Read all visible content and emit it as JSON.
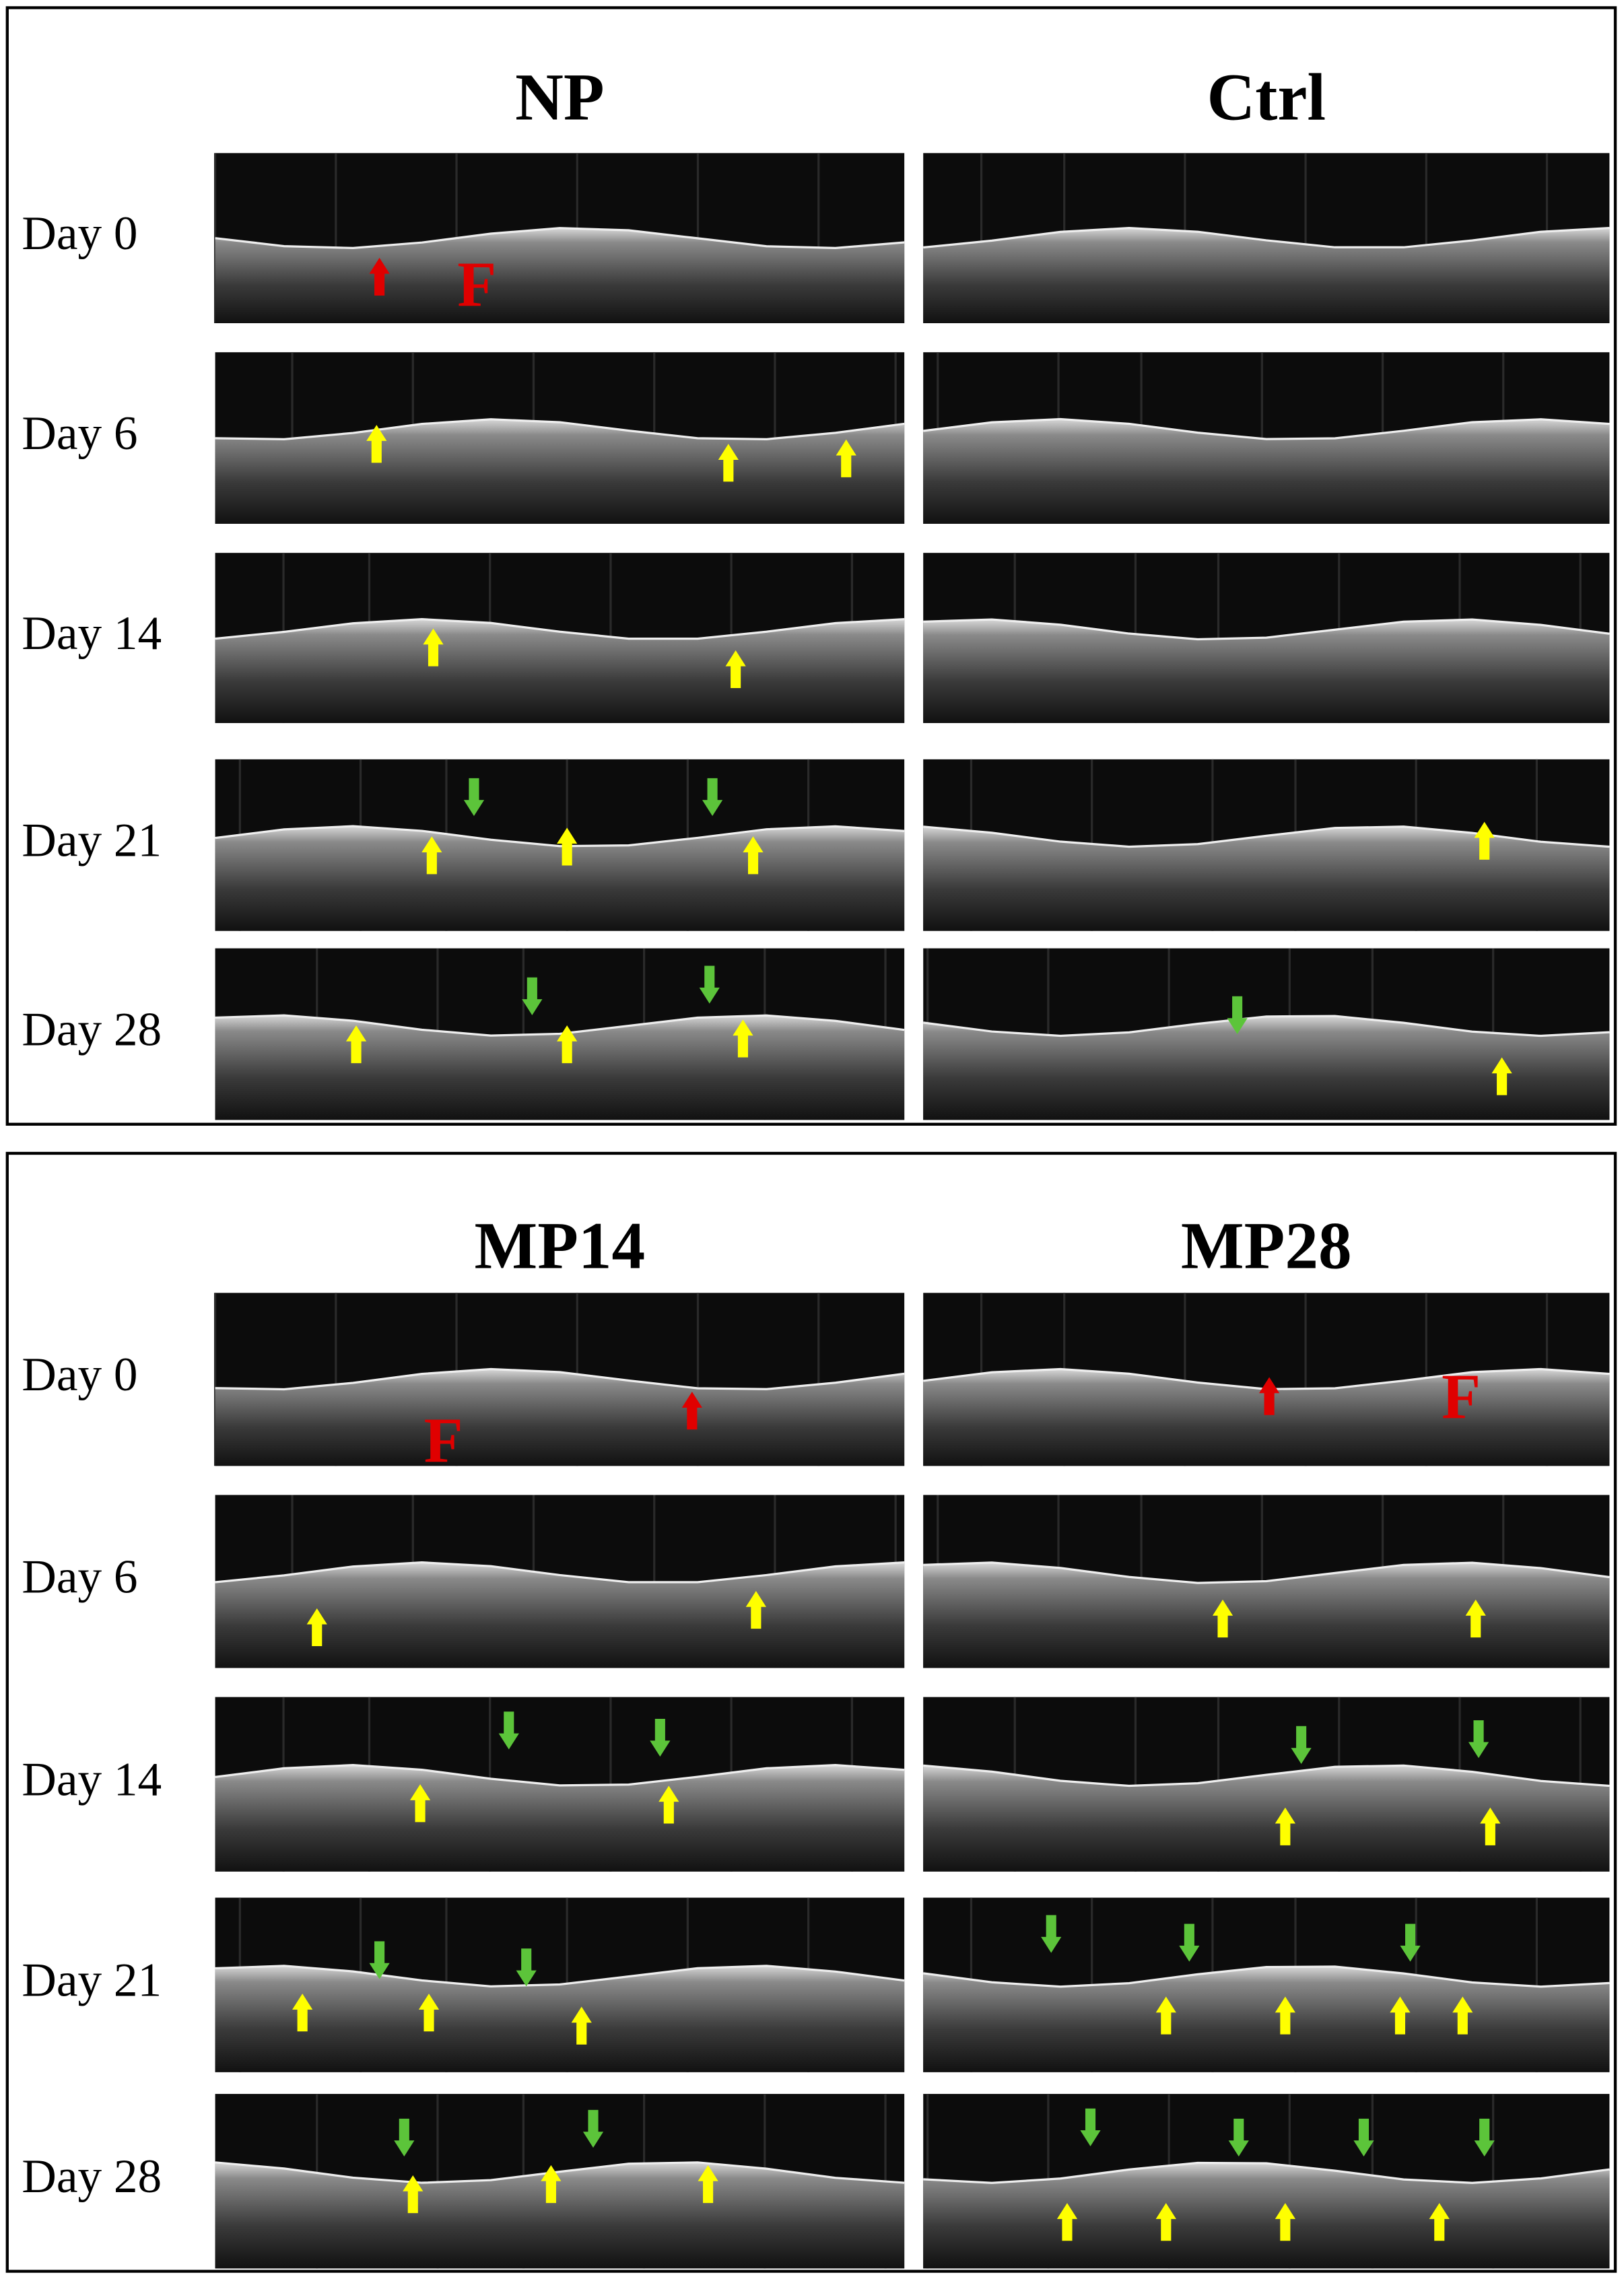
{
  "panels": [
    {
      "columns": [
        "NP",
        "Ctrl"
      ],
      "rows": [
        "Day 0",
        "Day 6",
        "Day 14",
        "Day 21",
        "Day 28"
      ],
      "marker_label": "F"
    },
    {
      "columns": [
        "MP14",
        "MP28"
      ],
      "rows": [
        "Day 0",
        "Day 6",
        "Day 14",
        "Day 21",
        "Day 28"
      ],
      "marker_label": "F"
    }
  ]
}
